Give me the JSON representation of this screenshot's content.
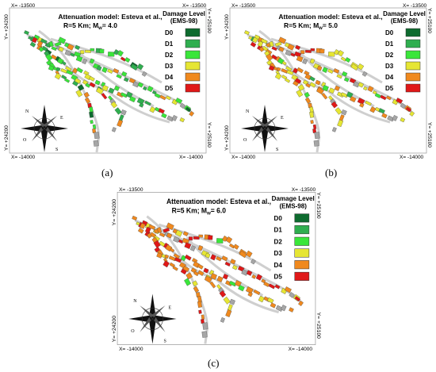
{
  "panels": [
    {
      "id": "a",
      "title_line1": "Attenuation model: Esteva et al.,",
      "title_line2": "R=5 Km;  M",
      "title_sub": "w",
      "title_tail": "= 4.0",
      "caption": "(a)",
      "coords": {
        "top_left": "X= -13500",
        "top_right": "X= -13500",
        "bottom_left": "X= -14000",
        "bottom_right": "X= -14000",
        "left_top": "Y= +24200",
        "left_bottom": "Y= +24200",
        "right_top": "Y= +25100",
        "right_bottom": "Y= +25100"
      },
      "mix": [
        0.05,
        0.25,
        0.4,
        0.15,
        0.1,
        0.05
      ]
    },
    {
      "id": "b",
      "title_line1": "Attenuation model: Esteva et al.,",
      "title_line2": "R=5 Km;  M",
      "title_sub": "w",
      "title_tail": "= 5.0",
      "caption": "(b)",
      "coords": {
        "top_left": "X= -13500",
        "top_right": "X= -13500",
        "bottom_left": "X= -14000",
        "bottom_right": "X= -14000",
        "left_top": "Y= +24200",
        "left_bottom": "Y= +24200",
        "right_top": "Y= +25100",
        "right_bottom": "Y= +25100"
      },
      "mix": [
        0.0,
        0.03,
        0.07,
        0.35,
        0.4,
        0.15
      ]
    },
    {
      "id": "c",
      "title_line1": "Attenuation model: Esteva et al.,",
      "title_line2": "R=5 Km;  M",
      "title_sub": "w",
      "title_tail": "= 6.0",
      "caption": "(c)",
      "coords": {
        "top_left": "X= -13500",
        "top_right": "X= -13500",
        "bottom_left": "X= -14000",
        "bottom_right": "X= -14000",
        "left_top": "Y= +24200",
        "left_bottom": "Y= +24200",
        "right_top": "Y= +25100",
        "right_bottom": "Y= +25100"
      },
      "mix": [
        0.0,
        0.0,
        0.02,
        0.15,
        0.58,
        0.25
      ]
    }
  ],
  "legend": {
    "title_line1": "Damage Level",
    "title_line2": "(EMS-98)",
    "items": [
      {
        "label": "D0",
        "color": "#0e6b2f"
      },
      {
        "label": "D1",
        "color": "#2fae4f"
      },
      {
        "label": "D2",
        "color": "#3ae63a"
      },
      {
        "label": "D3",
        "color": "#e6e633"
      },
      {
        "label": "D4",
        "color": "#f0891e"
      },
      {
        "label": "D5",
        "color": "#e01818"
      }
    ]
  },
  "compass": {
    "n": "N",
    "s": "S",
    "e": "E",
    "o": "O"
  },
  "colors": {
    "unassessed": "#a6a6a6",
    "road": "#cfcfcf"
  }
}
